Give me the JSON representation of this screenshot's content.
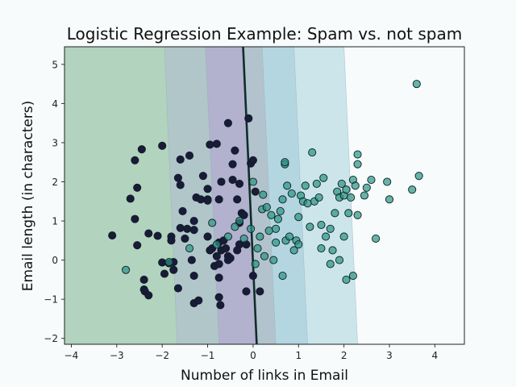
{
  "chart_data": {
    "type": "scatter",
    "title": "Logistic Regression Example: Spam vs. not spam",
    "xlabel": "Number of links in Email",
    "ylabel": "Email length (in characters)",
    "xlim": [
      -4.15,
      4.65
    ],
    "ylim": [
      -2.15,
      5.45
    ],
    "xticks": [
      -4,
      -3,
      -2,
      -1,
      0,
      1,
      2,
      3,
      4
    ],
    "yticks": [
      -2,
      -1,
      0,
      1,
      2,
      3,
      4,
      5
    ],
    "grid": false,
    "legend": "none",
    "decision_boundary": {
      "x_at_top": -0.22,
      "x_at_bottom": 0.08
    },
    "probability_bands": [
      {
        "color": "#b2d3bd",
        "x_top": -4.15,
        "x_bottom": -4.15
      },
      {
        "color": "#b1c6c9",
        "x_top": -1.95,
        "x_bottom": -1.67
      },
      {
        "color": "#b2b1ce",
        "x_top": -1.05,
        "x_bottom": -0.75
      },
      {
        "color": "#b2c3cd",
        "x_top": -0.22,
        "x_bottom": 0.08
      },
      {
        "color": "#b4d6e1",
        "x_top": 0.2,
        "x_bottom": 0.5
      },
      {
        "color": "#cce5eb",
        "x_top": 0.9,
        "x_bottom": 1.2
      },
      {
        "color": "#f7fbfc",
        "x_top": 2.0,
        "x_bottom": 2.3
      }
    ],
    "series": [
      {
        "color": "#1a1a3a",
        "points": [
          [
            -3.1,
            0.63
          ],
          [
            -2.6,
            2.55
          ],
          [
            -2.45,
            2.83
          ],
          [
            -2.7,
            1.57
          ],
          [
            -2.55,
            1.85
          ],
          [
            -2.6,
            1.05
          ],
          [
            -2.55,
            0.38
          ],
          [
            -2.4,
            -0.5
          ],
          [
            -2.4,
            -0.75
          ],
          [
            -2.38,
            -0.8
          ],
          [
            -2.3,
            -0.9
          ],
          [
            -2.3,
            0.68
          ],
          [
            -2.1,
            0.62
          ],
          [
            -2.0,
            2.92
          ],
          [
            -2.0,
            -0.06
          ],
          [
            -1.95,
            -0.35
          ],
          [
            -1.85,
            -0.08
          ],
          [
            -1.75,
            -0.25
          ],
          [
            -1.8,
            0.6
          ],
          [
            -1.8,
            0.5
          ],
          [
            -1.75,
            -0.05
          ],
          [
            -1.6,
            2.57
          ],
          [
            -1.4,
            2.67
          ],
          [
            -1.65,
            2.1
          ],
          [
            -1.6,
            1.92
          ],
          [
            -1.55,
            1.25
          ],
          [
            -1.6,
            0.82
          ],
          [
            -1.5,
            0.55
          ],
          [
            -1.45,
            0.8
          ],
          [
            -1.3,
            0.77
          ],
          [
            -1.65,
            -0.72
          ],
          [
            -1.35,
            0.0
          ],
          [
            -1.3,
            -0.4
          ],
          [
            -1.3,
            -1.1
          ],
          [
            -1.2,
            -1.03
          ],
          [
            -1.25,
            1.6
          ],
          [
            -1.3,
            1.0
          ],
          [
            -1.15,
            1.55
          ],
          [
            -1.1,
            2.15
          ],
          [
            -1.0,
            1.82
          ],
          [
            -1.0,
            1.55
          ],
          [
            -1.0,
            1.52
          ],
          [
            -0.95,
            2.95
          ],
          [
            -0.8,
            2.97
          ],
          [
            -1.0,
            0.6
          ],
          [
            -0.9,
            0.3
          ],
          [
            -0.95,
            0.25
          ],
          [
            -0.8,
            0.1
          ],
          [
            -0.85,
            -0.15
          ],
          [
            -0.75,
            -0.1
          ],
          [
            -0.75,
            0.45
          ],
          [
            -0.7,
            0.25
          ],
          [
            -0.75,
            -0.45
          ],
          [
            -0.75,
            -0.95
          ],
          [
            -0.72,
            -1.15
          ],
          [
            -0.7,
            2.0
          ],
          [
            -0.75,
            1.55
          ],
          [
            -0.65,
            0.5
          ],
          [
            -0.6,
            0.3
          ],
          [
            -0.55,
            0.1
          ],
          [
            -0.5,
            0.05
          ],
          [
            -0.55,
            0.0
          ],
          [
            -0.55,
            3.5
          ],
          [
            -0.45,
            2.45
          ],
          [
            -0.45,
            2.05
          ],
          [
            -0.35,
            1.55
          ],
          [
            -0.25,
            1.2
          ],
          [
            -0.3,
            0.95
          ],
          [
            -0.3,
            0.4
          ],
          [
            -0.35,
            0.25
          ],
          [
            -0.2,
            1.15
          ],
          [
            -0.15,
            0.4
          ],
          [
            -0.4,
            2.8
          ],
          [
            -0.3,
            1.95
          ],
          [
            -0.15,
            -0.8
          ],
          [
            -0.1,
            3.62
          ],
          [
            -0.05,
            2.47
          ],
          [
            0.0,
            2.55
          ],
          [
            0.05,
            1.75
          ],
          [
            0.0,
            -0.4
          ],
          [
            0.15,
            -0.8
          ]
        ]
      },
      {
        "color": "#2a9484",
        "points": [
          [
            -2.8,
            -0.25
          ],
          [
            -1.85,
            -0.05
          ],
          [
            -1.4,
            0.3
          ],
          [
            -0.9,
            0.95
          ],
          [
            -0.8,
            0.4
          ],
          [
            -0.55,
            0.6
          ],
          [
            -0.4,
            0.85
          ],
          [
            -0.3,
            1.0
          ],
          [
            -0.2,
            0.55
          ],
          [
            -0.05,
            0.8
          ],
          [
            0.0,
            2.0
          ],
          [
            0.1,
            0.3
          ],
          [
            0.15,
            0.6
          ],
          [
            0.2,
            1.3
          ],
          [
            0.22,
            1.67
          ],
          [
            0.25,
            0.1
          ],
          [
            0.3,
            1.35
          ],
          [
            0.35,
            0.75
          ],
          [
            0.4,
            1.15
          ],
          [
            0.45,
            0.0
          ],
          [
            0.5,
            0.45
          ],
          [
            0.55,
            1.05
          ],
          [
            0.6,
            1.25
          ],
          [
            0.65,
            1.55
          ],
          [
            0.7,
            2.45
          ],
          [
            0.7,
            2.5
          ],
          [
            0.72,
            0.5
          ],
          [
            0.75,
            1.9
          ],
          [
            0.8,
            0.6
          ],
          [
            0.85,
            1.7
          ],
          [
            0.9,
            0.25
          ],
          [
            0.95,
            0.5
          ],
          [
            1.0,
            1.1
          ],
          [
            1.05,
            1.65
          ],
          [
            1.1,
            1.5
          ],
          [
            1.15,
            1.9
          ],
          [
            1.2,
            1.45
          ],
          [
            1.25,
            0.85
          ],
          [
            1.3,
            2.75
          ],
          [
            1.35,
            1.5
          ],
          [
            1.4,
            1.95
          ],
          [
            1.45,
            1.6
          ],
          [
            1.5,
            0.9
          ],
          [
            1.55,
            2.1
          ],
          [
            1.6,
            0.6
          ],
          [
            1.7,
            0.8
          ],
          [
            1.75,
            0.25
          ],
          [
            1.8,
            1.2
          ],
          [
            1.85,
            1.75
          ],
          [
            1.9,
            1.6
          ],
          [
            1.95,
            1.95
          ],
          [
            2.0,
            1.65
          ],
          [
            2.05,
            1.8
          ],
          [
            2.1,
            1.2
          ],
          [
            2.15,
            1.6
          ],
          [
            2.2,
            2.05
          ],
          [
            2.25,
            1.9
          ],
          [
            2.3,
            2.7
          ],
          [
            2.45,
            1.65
          ],
          [
            2.5,
            1.85
          ],
          [
            2.6,
            2.05
          ],
          [
            2.7,
            0.55
          ],
          [
            2.95,
            2.0
          ],
          [
            3.0,
            1.55
          ],
          [
            3.5,
            1.8
          ],
          [
            3.6,
            4.5
          ],
          [
            3.65,
            2.15
          ],
          [
            2.2,
            -0.4
          ],
          [
            2.05,
            -0.5
          ],
          [
            1.9,
            0.0
          ],
          [
            1.7,
            -0.1
          ],
          [
            2.0,
            0.6
          ],
          [
            1.5,
            0.3
          ],
          [
            0.5,
            0.8
          ],
          [
            1.0,
            0.4
          ],
          [
            0.65,
            -0.4
          ],
          [
            0.05,
            -0.1
          ],
          [
            2.3,
            1.15
          ],
          [
            2.3,
            2.45
          ]
        ]
      }
    ]
  }
}
